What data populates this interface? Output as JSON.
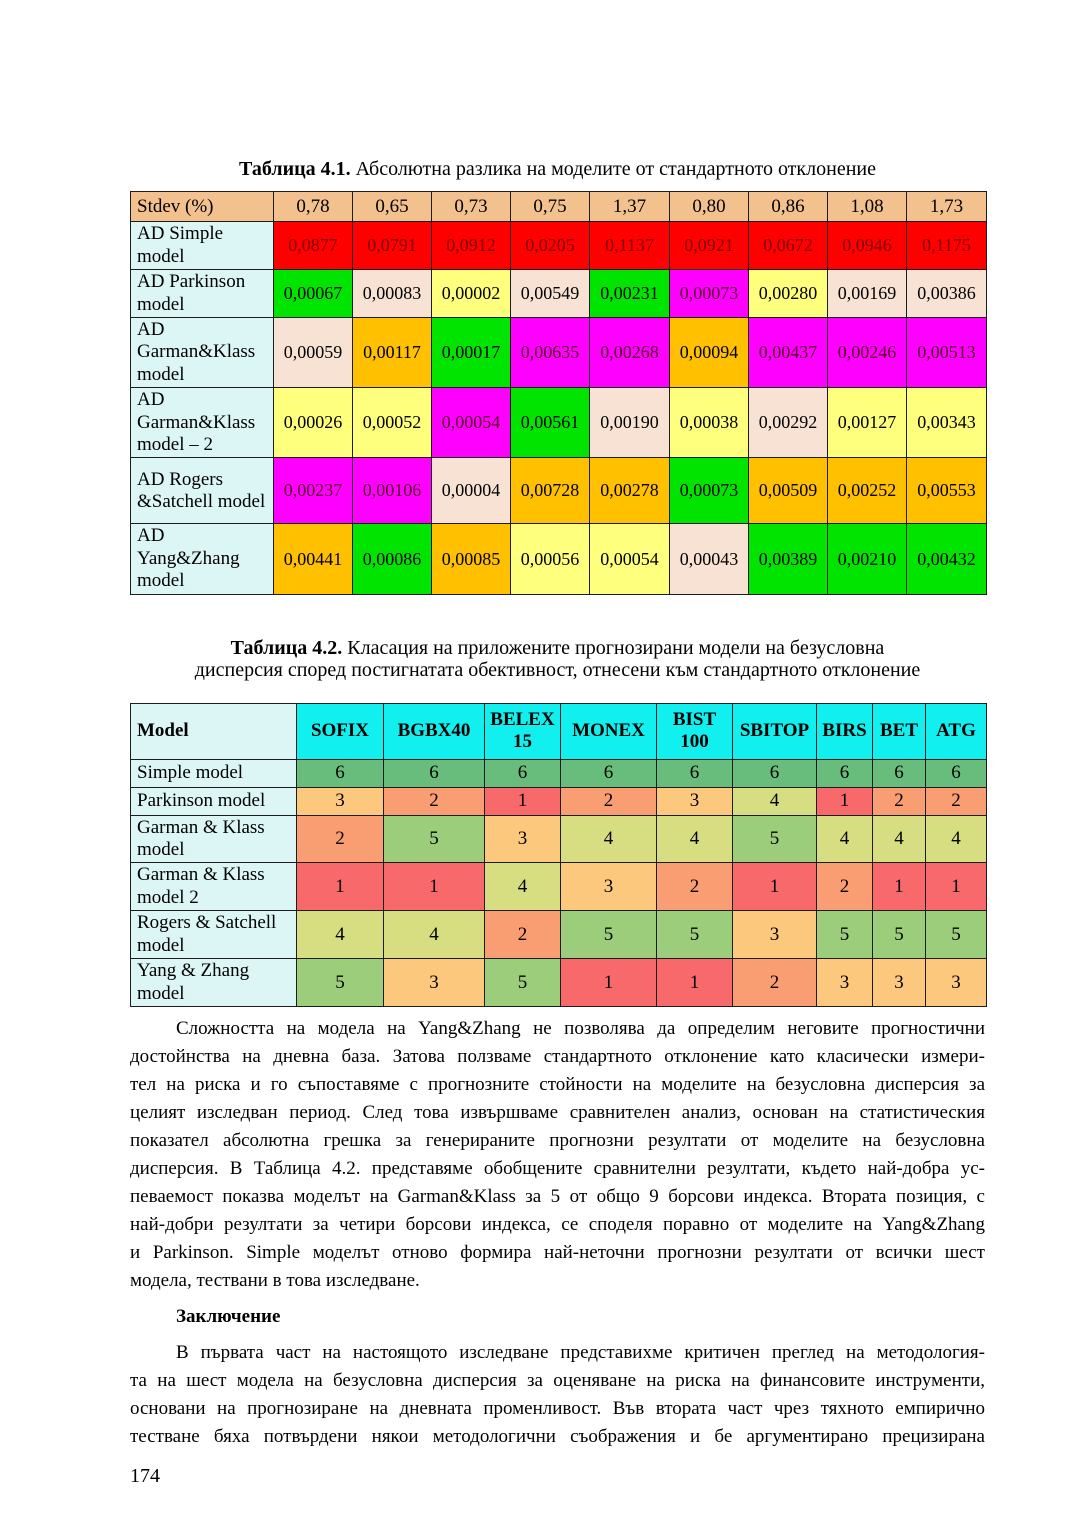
{
  "colors": {
    "borderColor": "#1c1c1c",
    "t1HeaderBg": "#F2C18E",
    "labelBg": "#DCF6F5",
    "t2HeaderBg": "#12EFEF",
    "redCell": "#FE0000",
    "redCellText": "#7C0000",
    "greenCell": "#00E400",
    "yellowCell": "#FFFF7E",
    "peachCell": "#F7E2D3",
    "orangeCell": "#FFC000",
    "magentaCell": "#FE00FE",
    "magentaCellText": "#550028",
    "rank1": "#F8696B",
    "rank2": "#F99D72",
    "rank3": "#FCC87E",
    "rank4": "#D6DE81",
    "rank5": "#9BCD7B",
    "rank6": "#68BD7C"
  },
  "table1_title": {
    "bold": "Таблица 4.1.",
    "rest": " Абсолютна разлика на моделите от стандартното отклонение"
  },
  "table1": {
    "header": [
      "Stdev (%)",
      "0,78",
      "0,65",
      "0,73",
      "0,75",
      "1,37",
      "0,80",
      "0,86",
      "1,08",
      "1,73"
    ],
    "rows": [
      {
        "label": "AD Simple model",
        "cells": [
          {
            "v": "0,0877",
            "c": "red"
          },
          {
            "v": "0,0791",
            "c": "red"
          },
          {
            "v": "0,0912",
            "c": "red"
          },
          {
            "v": "0,0205",
            "c": "red"
          },
          {
            "v": "0,1137",
            "c": "red"
          },
          {
            "v": "0,0921",
            "c": "red"
          },
          {
            "v": "0,0672",
            "c": "red"
          },
          {
            "v": "0,0946",
            "c": "red"
          },
          {
            "v": "0,1175",
            "c": "red"
          }
        ]
      },
      {
        "label": "AD Parkinson model",
        "cells": [
          {
            "v": "0,00067",
            "c": "green"
          },
          {
            "v": "0,00083",
            "c": "peach"
          },
          {
            "v": "0,00002",
            "c": "yellow"
          },
          {
            "v": "0,00549",
            "c": "peach"
          },
          {
            "v": "0,00231",
            "c": "green"
          },
          {
            "v": "0,00073",
            "c": "magenta"
          },
          {
            "v": "0,00280",
            "c": "yellow"
          },
          {
            "v": "0,00169",
            "c": "peach"
          },
          {
            "v": "0,00386",
            "c": "peach"
          }
        ]
      },
      {
        "label": "AD Garman&Klass model",
        "cells": [
          {
            "v": "0,00059",
            "c": "peach"
          },
          {
            "v": "0,00117",
            "c": "orange"
          },
          {
            "v": "0,00017",
            "c": "green"
          },
          {
            "v": "0,00635",
            "c": "magenta"
          },
          {
            "v": "0,00268",
            "c": "magenta"
          },
          {
            "v": "0,00094",
            "c": "orange"
          },
          {
            "v": "0,00437",
            "c": "magenta"
          },
          {
            "v": "0,00246",
            "c": "magenta"
          },
          {
            "v": "0,00513",
            "c": "magenta"
          }
        ]
      },
      {
        "label": "AD Garman&Klass model – 2",
        "cells": [
          {
            "v": "0,00026",
            "c": "yellow"
          },
          {
            "v": "0,00052",
            "c": "yellow"
          },
          {
            "v": "0,00054",
            "c": "magenta"
          },
          {
            "v": "0,00561",
            "c": "green"
          },
          {
            "v": "0,00190",
            "c": "peach"
          },
          {
            "v": "0,00038",
            "c": "yellow"
          },
          {
            "v": "0,00292",
            "c": "peach"
          },
          {
            "v": "0,00127",
            "c": "yellow"
          },
          {
            "v": "0,00343",
            "c": "yellow"
          }
        ]
      },
      {
        "label": "AD Rogers &Satchell model",
        "cells": [
          {
            "v": "0,00237",
            "c": "magenta"
          },
          {
            "v": "0,00106",
            "c": "magenta"
          },
          {
            "v": "0,00004",
            "c": "peach"
          },
          {
            "v": "0,00728",
            "c": "orange"
          },
          {
            "v": "0,00278",
            "c": "orange"
          },
          {
            "v": "0,00073",
            "c": "green"
          },
          {
            "v": "0,00509",
            "c": "orange"
          },
          {
            "v": "0,00252",
            "c": "orange"
          },
          {
            "v": "0,00553",
            "c": "orange"
          }
        ]
      },
      {
        "label": "AD Yang&Zhang model",
        "cells": [
          {
            "v": "0,00441",
            "c": "orange"
          },
          {
            "v": "0,00086",
            "c": "green"
          },
          {
            "v": "0,00085",
            "c": "orange"
          },
          {
            "v": "0,00056",
            "c": "yellow"
          },
          {
            "v": "0,00054",
            "c": "yellow"
          },
          {
            "v": "0,00043",
            "c": "peach"
          },
          {
            "v": "0,00389",
            "c": "green"
          },
          {
            "v": "0,00210",
            "c": "green"
          },
          {
            "v": "0,00432",
            "c": "green"
          }
        ]
      }
    ]
  },
  "table2_title": {
    "bold": "Таблица 4.2.",
    "line1_rest": " Класация на приложените прогнозирани модели на безусловна",
    "line2": "дисперсия според постигнатата обективност, отнесени към стандартното отклонение"
  },
  "table2": {
    "header": [
      "Model",
      "SOFIX",
      "BGBX40",
      "BELEX 15",
      "MONEX",
      "BIST 100",
      "SBITOP",
      "BIRS",
      "BET",
      "ATG"
    ],
    "rows": [
      {
        "label": "Simple model",
        "ranks": [
          6,
          6,
          6,
          6,
          6,
          6,
          6,
          6,
          6
        ]
      },
      {
        "label": "Parkinson model",
        "ranks": [
          3,
          2,
          1,
          2,
          3,
          4,
          1,
          2,
          2
        ]
      },
      {
        "label": "Garman & Klass model",
        "ranks": [
          2,
          5,
          3,
          4,
          4,
          5,
          4,
          4,
          4
        ]
      },
      {
        "label": "Garman & Klass model 2",
        "ranks": [
          1,
          1,
          4,
          3,
          2,
          1,
          2,
          1,
          1
        ]
      },
      {
        "label": "Rogers & Satchell model",
        "ranks": [
          4,
          4,
          2,
          5,
          5,
          3,
          5,
          5,
          5
        ]
      },
      {
        "label": "Yang & Zhang model",
        "ranks": [
          5,
          3,
          5,
          1,
          1,
          2,
          3,
          3,
          3
        ]
      }
    ]
  },
  "paragraph1": {
    "lines": [
      "Сложността на модела на Yang&Zhang не позволява да определим неговите прогностични",
      "достойнства на дневна база. Затова ползваме стандартното отклонение като класически измери-",
      "тел на риска и го съпоставяме с прогнозните стойности на моделите на безусловна дисперсия за",
      "целият изследван период. След това извършваме сравнителен анализ, основан на статистическия",
      "показател абсолютна грешка за генерираните прогнозни резултати от моделите на безусловна",
      "дисперсия. В Таблица 4.2. представяме обобщените сравнителни резултати, където най-добра ус-",
      "певаемост показва моделът на Garman&Klass за 5 от общо 9 борсови индекса. Втората позиция, с",
      "най-добри резултати за четири борсови индекса, се споделя поравно от моделите на Yang&Zhang",
      "и Parkinson. Simple моделът отново формира най-неточни прогнозни резултати от всички шест",
      "модела, тествани в това изследване."
    ]
  },
  "conclusion": {
    "heading": "Заключение"
  },
  "paragraph2": {
    "lines": [
      "В първата част на настоящото изследване представихме критичен преглед на методология-",
      "та на шест модела на безусловна дисперсия за оценяване на риска на финансовите инструменти,",
      "основани на прогнозиране на дневната променливост. Във втората част чрез тяхното емпирично",
      "тестване бяха потвърдени някои методологични съображения и бе аргументирано прецизирана"
    ]
  },
  "page_number": "174"
}
